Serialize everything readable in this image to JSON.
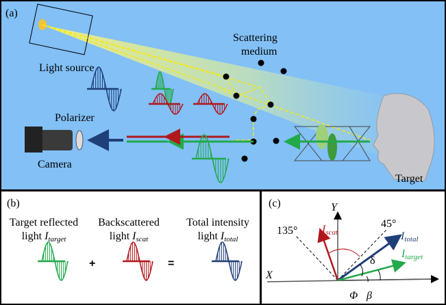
{
  "panel_a": {
    "label": "(a)",
    "scattering_medium": [
      "Scattering",
      "medium"
    ],
    "light_source": "Light source",
    "polarizer": "Polarizer",
    "camera": "Camera",
    "target": "Target"
  },
  "panel_b": {
    "label": "(b)",
    "terms": [
      {
        "line1": "Target reflected",
        "line2": "light ",
        "symbol": "I",
        "subscript": "target"
      },
      {
        "line1": "Backscattered",
        "line2": "light ",
        "symbol": "I",
        "subscript": "scat"
      },
      {
        "line1": "Total intensity",
        "line2": "light ",
        "symbol": "I",
        "subscript": "total"
      }
    ],
    "plus": "+",
    "equals": "="
  },
  "panel_c": {
    "label": "(c)",
    "y_axis": "Y",
    "x_axis": "X",
    "angle_135": "135°",
    "angle_45": "45°",
    "i_scat": {
      "symbol": "I",
      "subscript": "scat"
    },
    "i_total": {
      "symbol": "I",
      "subscript": "total"
    },
    "i_target": {
      "symbol": "I",
      "subscript": "target"
    },
    "delta": "δ",
    "phi": "Φ",
    "beta": "β"
  }
}
